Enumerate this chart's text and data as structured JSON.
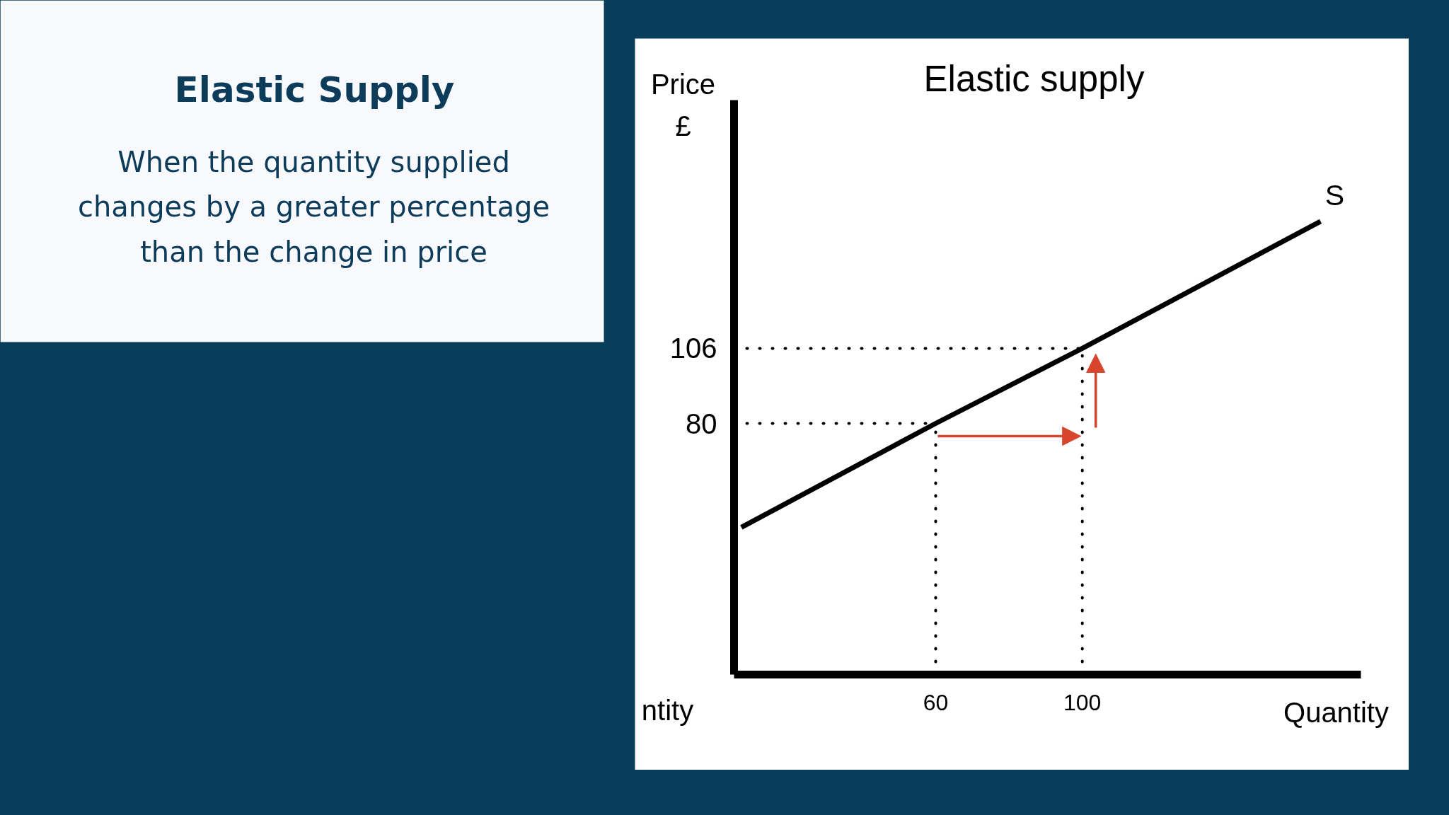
{
  "chart_data": [
    {
      "type": "other",
      "title": "Elastic Supply",
      "subtitle": "When the quantity supplied changes by a greater percentage than the change in price"
    },
    {
      "type": "line",
      "title": "Elastic supply",
      "xlabel": "Quantity",
      "ylabel": "Price £",
      "annotations": [
        "ntity"
      ],
      "series": [
        {
          "name": "S",
          "color": "#000000",
          "x": [
            7,
            60,
            100,
            165
          ],
          "values": [
            44,
            80,
            106,
            150
          ]
        }
      ],
      "xlim": [
        5,
        176
      ],
      "ylim": [
        -7,
        192
      ],
      "xticks": [
        60,
        100
      ],
      "yticks": [
        80,
        106
      ],
      "line_style": "solid",
      "ref_lines": [
        {
          "axis": "y",
          "value": 80,
          "color": "#000000",
          "line_style": "dotted"
        },
        {
          "axis": "y",
          "value": 106,
          "color": "#000000",
          "line_style": "dotted"
        },
        {
          "axis": "x",
          "value": 60,
          "color": "#000000",
          "line_style": "dotted"
        },
        {
          "axis": "x",
          "value": 100,
          "color": "#000000",
          "line_style": "dotted"
        }
      ]
    }
  ]
}
